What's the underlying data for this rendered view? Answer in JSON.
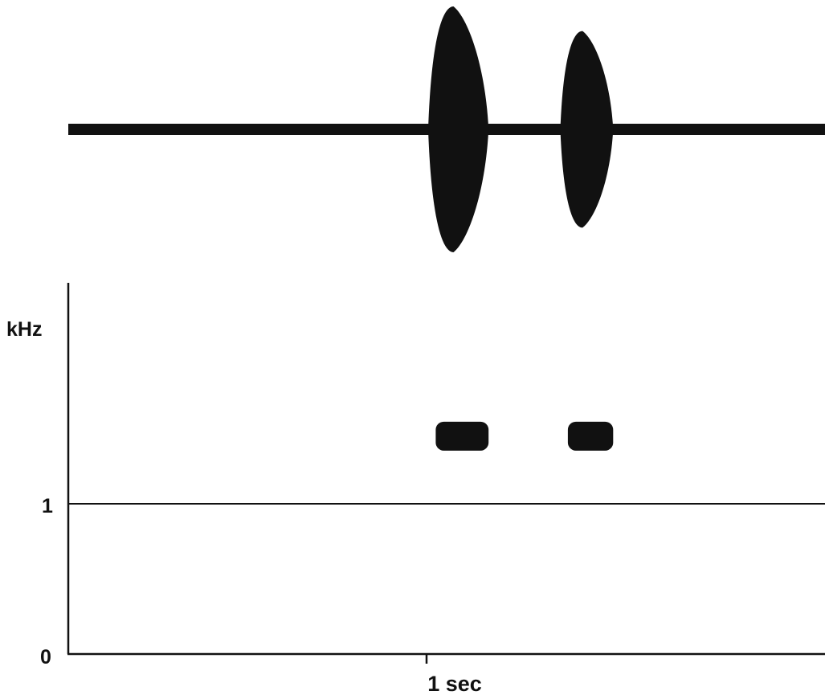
{
  "chart_data": [
    {
      "type": "waveform",
      "description_of_marks": "oscillogram",
      "x_unit": "sec",
      "bursts": [
        {
          "start": 0.0,
          "end": 0.16,
          "peak_amplitude": 1.0
        },
        {
          "start": 0.35,
          "end": 0.49,
          "peak_amplitude": 0.8
        }
      ],
      "noise_amplitude": 0.06
    },
    {
      "type": "heatmap",
      "ylabel": "kHz",
      "y_ticks": [
        "1",
        "0"
      ],
      "x_tick_label": "1 sec",
      "ylim": [
        0,
        2
      ],
      "reference_line_y": 1,
      "notes": [
        {
          "start": 0.02,
          "end": 0.16,
          "freq_khz": 1.45
        },
        {
          "start": 0.37,
          "end": 0.49,
          "freq_khz": 1.45
        }
      ]
    }
  ],
  "colors": {
    "ink": "#111111",
    "background": "#ffffff"
  }
}
